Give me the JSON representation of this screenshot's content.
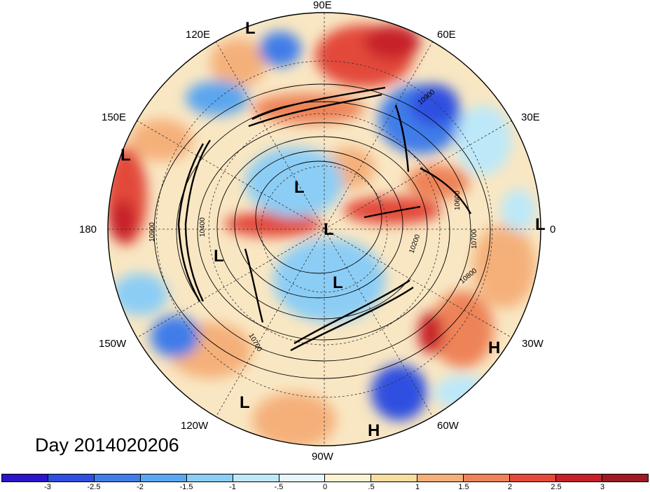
{
  "title": "Day 2014020206",
  "longitude_labels": {
    "lon_90e": "90E",
    "lon_120e": "120E",
    "lon_60e": "60E",
    "lon_150e": "150E",
    "lon_30e": "30E",
    "lon_180": "180",
    "lon_0": "0",
    "lon_150w": "150W",
    "lon_30w": "30W",
    "lon_120w": "120W",
    "lon_60w": "60W",
    "lon_90w": "90W"
  },
  "pressure_centers": [
    {
      "id": "low-1",
      "label": "L"
    },
    {
      "id": "low-2",
      "label": "L"
    },
    {
      "id": "low-3",
      "label": "L"
    },
    {
      "id": "low-4",
      "label": "L"
    },
    {
      "id": "low-5",
      "label": "L"
    },
    {
      "id": "low-6",
      "label": "L"
    },
    {
      "id": "low-7",
      "label": "L"
    },
    {
      "id": "low-8",
      "label": "L"
    },
    {
      "id": "high-1",
      "label": "H"
    },
    {
      "id": "high-2",
      "label": "H"
    }
  ],
  "contour_labels": [
    "10900",
    "10400",
    "10700",
    "10800",
    "10200",
    "10700",
    "10900",
    "10600"
  ],
  "colorbar": {
    "colors": [
      "#2b16c9",
      "#2f4fe0",
      "#3f7de9",
      "#5aa6f0",
      "#8ccdf5",
      "#bde8f8",
      "#e6f6fb",
      "#fbf3d2",
      "#f8dca0",
      "#f5b07a",
      "#ee8358",
      "#e34a3a",
      "#c7202a",
      "#a01a23"
    ],
    "ticks": [
      "-3",
      "-2.5",
      "-2",
      "-1.5",
      "-1",
      "-.5",
      "0",
      ".5",
      "1",
      "1.5",
      "2",
      "2.5",
      "3"
    ]
  }
}
